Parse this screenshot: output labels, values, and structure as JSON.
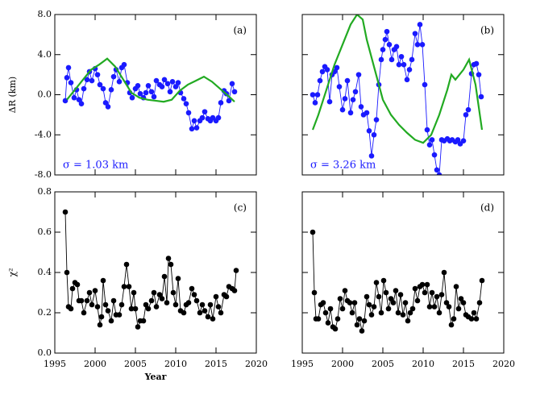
{
  "chart_data": [
    {
      "type": "line",
      "panel_label": "(a)",
      "note": "σ = 1.03 km",
      "ylabel": "ΔR (km)",
      "xlim": [
        1995,
        2020
      ],
      "xticks": [
        1995,
        2000,
        2005,
        2010,
        2015,
        2020
      ],
      "xtick_labels": false,
      "ytick_labels": true,
      "ylim": [
        -8,
        8
      ],
      "yticks": [
        {
          "value": -8,
          "label": "-8.0"
        },
        {
          "value": -4,
          "label": "-4.0"
        },
        {
          "value": 0,
          "label": "0.0"
        },
        {
          "value": 4,
          "label": "4.0"
        },
        {
          "value": 8,
          "label": "8.0"
        }
      ],
      "series": [
        {
          "color": "#1a1aff",
          "markers": true,
          "x": [
            1996.3,
            1996.5,
            1996.7,
            1997,
            1997.4,
            1997.7,
            1998,
            1998.3,
            1998.6,
            1999,
            1999.3,
            1999.6,
            2000,
            2000.3,
            2000.6,
            2001,
            2001.3,
            2001.6,
            2002,
            2002.3,
            2002.6,
            2003,
            2003.3,
            2003.6,
            2004,
            2004.3,
            2004.6,
            2005,
            2005.3,
            2005.6,
            2006,
            2006.3,
            2006.6,
            2007,
            2007.3,
            2007.6,
            2008,
            2008.3,
            2008.6,
            2009,
            2009.3,
            2009.6,
            2010,
            2010.3,
            2010.6,
            2011,
            2011.3,
            2011.6,
            2012,
            2012.3,
            2012.6,
            2013,
            2013.3,
            2013.6,
            2014,
            2014.3,
            2014.6,
            2015,
            2015.3,
            2015.6,
            2016,
            2016.3,
            2016.6,
            2017,
            2017.3
          ],
          "values": [
            -0.6,
            1.7,
            2.7,
            1.2,
            -0.3,
            0.5,
            -0.5,
            -0.9,
            0.6,
            1.5,
            2.3,
            1.4,
            2.6,
            2.0,
            1.0,
            0.6,
            -0.8,
            -1.2,
            0.5,
            1.8,
            2.5,
            1.3,
            2.7,
            3.0,
            1.2,
            0.2,
            -0.3,
            0.6,
            0.9,
            0.1,
            -0.3,
            0.2,
            0.9,
            0.3,
            -0.2,
            1.4,
            1.0,
            0.8,
            1.5,
            1.1,
            0.3,
            1.3,
            0.8,
            1.2,
            0.2,
            -0.4,
            -0.9,
            -1.8,
            -3.4,
            -2.6,
            -3.3,
            -2.6,
            -2.3,
            -1.7,
            -2.4,
            -2.6,
            -2.3,
            -2.6,
            -2.3,
            -0.8,
            0.4,
            0.1,
            -0.6,
            1.1,
            0.3
          ]
        },
        {
          "color": "#22aa22",
          "markers": false,
          "x": [
            1996.5,
            1997.5,
            1998.5,
            1999.5,
            2000.5,
            2001.5,
            2002.5,
            2003.5,
            2004.5,
            2005.5,
            2006.5,
            2007.5,
            2008.5,
            2009.5,
            2010.5,
            2011.5,
            2012.5,
            2013.5,
            2014.5,
            2015.5,
            2016.5,
            2017.3
          ],
          "values": [
            -0.5,
            0.5,
            1.5,
            2.5,
            3.0,
            3.6,
            2.8,
            1.5,
            0.2,
            -0.3,
            -0.5,
            -0.6,
            -0.7,
            -0.5,
            0.4,
            1.0,
            1.4,
            1.8,
            1.3,
            0.6,
            -0.1,
            -0.7
          ]
        }
      ]
    },
    {
      "type": "line",
      "panel_label": "(b)",
      "note": "σ = 3.26 km",
      "xlim": [
        1995,
        2020
      ],
      "xticks": [
        1995,
        2000,
        2005,
        2010,
        2015,
        2020
      ],
      "xtick_labels": false,
      "ytick_labels": false,
      "ylim": [
        -8,
        8
      ],
      "yticks": [
        -8,
        -4,
        0,
        4,
        8
      ],
      "series": [
        {
          "color": "#1a1aff",
          "markers": true,
          "x": [
            1996.3,
            1996.6,
            1996.9,
            1997.2,
            1997.5,
            1997.8,
            1998.1,
            1998.4,
            1998.7,
            1999,
            1999.3,
            1999.6,
            2000,
            2000.3,
            2000.6,
            2001,
            2001.3,
            2001.6,
            2002,
            2002.3,
            2002.6,
            2003,
            2003.3,
            2003.6,
            2003.9,
            2004.2,
            2004.5,
            2004.8,
            2005,
            2005.3,
            2005.5,
            2005.8,
            2006.1,
            2006.4,
            2006.7,
            2007,
            2007.3,
            2007.6,
            2008,
            2008.3,
            2008.6,
            2009,
            2009.3,
            2009.6,
            2009.9,
            2010.2,
            2010.5,
            2010.8,
            2011.1,
            2011.4,
            2011.7,
            2012,
            2012.3,
            2012.6,
            2013,
            2013.3,
            2013.6,
            2014,
            2014.3,
            2014.6,
            2015,
            2015.3,
            2015.6,
            2016,
            2016.3,
            2016.6,
            2016.9,
            2017.2
          ],
          "values": [
            0.0,
            -0.8,
            0.0,
            1.4,
            2.3,
            2.8,
            2.5,
            -0.7,
            2.0,
            2.3,
            2.7,
            0.8,
            -1.5,
            -0.4,
            1.4,
            -1.8,
            -0.5,
            0.3,
            2.0,
            -1.2,
            -2.0,
            -1.8,
            -3.6,
            -6.1,
            -4.0,
            -2.5,
            1.0,
            3.5,
            4.5,
            5.5,
            6.3,
            5.0,
            3.5,
            4.5,
            4.8,
            3.0,
            3.8,
            3.0,
            1.5,
            2.5,
            3.5,
            6.1,
            5.0,
            7.0,
            5.0,
            1.0,
            -3.5,
            -5.0,
            -4.5,
            -6.0,
            -7.5,
            -8.0,
            -4.5,
            -4.6,
            -4.4,
            -4.6,
            -4.5,
            -4.7,
            -4.5,
            -4.9,
            -4.6,
            -2.0,
            -1.5,
            2.1,
            3.0,
            3.1,
            2.0,
            -0.2
          ]
        },
        {
          "color": "#22aa22",
          "markers": false,
          "x": [
            1996.3,
            1997,
            1998,
            1999,
            2000,
            2001,
            2001.8,
            2002.5,
            2003,
            2004,
            2005,
            2006,
            2007,
            2008,
            2009,
            2010,
            2011,
            2012,
            2013,
            2013.5,
            2014,
            2015,
            2015.7,
            2016.5,
            2017.3
          ],
          "values": [
            -3.5,
            -2.0,
            0.5,
            3.0,
            5.0,
            7.0,
            8.0,
            7.5,
            5.5,
            2.5,
            -0.5,
            -2.0,
            -3.0,
            -3.8,
            -4.5,
            -4.8,
            -4.0,
            -2.0,
            0.5,
            2.0,
            1.5,
            2.5,
            3.5,
            1.0,
            -3.5
          ]
        }
      ]
    },
    {
      "type": "line",
      "panel_label": "(c)",
      "ylabel": "χ²",
      "xlabel": "Year",
      "xlim": [
        1995,
        2020
      ],
      "xticks": [
        1995,
        2000,
        2005,
        2010,
        2015,
        2020
      ],
      "xtick_labels": true,
      "ytick_labels": true,
      "ylim": [
        0,
        0.8
      ],
      "yticks": [
        {
          "value": 0,
          "label": "0.0"
        },
        {
          "value": 0.2,
          "label": "0.2"
        },
        {
          "value": 0.4,
          "label": "0.4"
        },
        {
          "value": 0.6,
          "label": "0.6"
        },
        {
          "value": 0.8,
          "label": "0.8"
        }
      ],
      "series": [
        {
          "color": "#000000",
          "markers": true,
          "x": [
            1996.3,
            1996.5,
            1996.7,
            1997,
            1997.2,
            1997.5,
            1997.8,
            1998,
            1998.3,
            1998.6,
            1999,
            1999.3,
            1999.6,
            2000,
            2000.3,
            2000.6,
            2000.8,
            2001,
            2001.3,
            2001.6,
            2002,
            2002.3,
            2002.6,
            2003,
            2003.3,
            2003.6,
            2003.9,
            2004.2,
            2004.5,
            2004.8,
            2005,
            2005.3,
            2005.6,
            2006,
            2006.3,
            2006.6,
            2007,
            2007.3,
            2007.6,
            2008,
            2008.3,
            2008.6,
            2008.9,
            2009.1,
            2009.4,
            2009.7,
            2010,
            2010.3,
            2010.6,
            2011,
            2011.3,
            2011.6,
            2012,
            2012.3,
            2012.6,
            2013,
            2013.3,
            2013.6,
            2014,
            2014.3,
            2014.6,
            2015,
            2015.3,
            2015.6,
            2016,
            2016.3,
            2016.6,
            2017,
            2017.3,
            2017.5
          ],
          "values": [
            0.7,
            0.4,
            0.23,
            0.22,
            0.32,
            0.35,
            0.34,
            0.26,
            0.26,
            0.2,
            0.26,
            0.3,
            0.24,
            0.31,
            0.23,
            0.14,
            0.18,
            0.36,
            0.24,
            0.21,
            0.16,
            0.26,
            0.19,
            0.19,
            0.24,
            0.33,
            0.44,
            0.33,
            0.22,
            0.3,
            0.22,
            0.13,
            0.16,
            0.16,
            0.24,
            0.22,
            0.26,
            0.3,
            0.23,
            0.29,
            0.27,
            0.38,
            0.25,
            0.47,
            0.44,
            0.3,
            0.24,
            0.37,
            0.21,
            0.2,
            0.24,
            0.25,
            0.32,
            0.29,
            0.26,
            0.2,
            0.24,
            0.21,
            0.18,
            0.24,
            0.17,
            0.28,
            0.23,
            0.2,
            0.29,
            0.28,
            0.33,
            0.32,
            0.31,
            0.41
          ]
        }
      ]
    },
    {
      "type": "line",
      "panel_label": "(d)",
      "xlim": [
        1995,
        2020
      ],
      "xticks": [
        1995,
        2000,
        2005,
        2010,
        2015,
        2020
      ],
      "xtick_labels": true,
      "ytick_labels": false,
      "ylim": [
        0,
        0.8
      ],
      "yticks": [
        0,
        0.2,
        0.4,
        0.6,
        0.8
      ],
      "series": [
        {
          "color": "#000000",
          "markers": true,
          "x": [
            1996.3,
            1996.5,
            1996.7,
            1997,
            1997.3,
            1997.6,
            1997.9,
            1998.2,
            1998.5,
            1998.8,
            1999.1,
            1999.4,
            1999.7,
            2000,
            2000.3,
            2000.6,
            2000.9,
            2001.2,
            2001.5,
            2001.8,
            2002.1,
            2002.4,
            2002.7,
            2003,
            2003.3,
            2003.6,
            2003.9,
            2004.2,
            2004.5,
            2004.8,
            2005.1,
            2005.4,
            2005.7,
            2006,
            2006.3,
            2006.6,
            2006.9,
            2007.2,
            2007.5,
            2007.8,
            2008.1,
            2008.4,
            2008.7,
            2009,
            2009.3,
            2009.6,
            2009.9,
            2010.2,
            2010.5,
            2010.8,
            2011.1,
            2011.4,
            2011.7,
            2012,
            2012.3,
            2012.6,
            2012.9,
            2013.2,
            2013.5,
            2013.8,
            2014.1,
            2014.4,
            2014.7,
            2015,
            2015.3,
            2015.6,
            2016,
            2016.3,
            2016.6,
            2017,
            2017.3
          ],
          "values": [
            0.6,
            0.3,
            0.17,
            0.17,
            0.24,
            0.25,
            0.2,
            0.15,
            0.22,
            0.13,
            0.12,
            0.17,
            0.27,
            0.22,
            0.31,
            0.26,
            0.25,
            0.2,
            0.25,
            0.14,
            0.17,
            0.11,
            0.16,
            0.28,
            0.24,
            0.19,
            0.23,
            0.35,
            0.28,
            0.2,
            0.36,
            0.3,
            0.22,
            0.27,
            0.25,
            0.31,
            0.2,
            0.29,
            0.19,
            0.25,
            0.16,
            0.2,
            0.22,
            0.32,
            0.26,
            0.33,
            0.34,
            0.3,
            0.34,
            0.23,
            0.3,
            0.23,
            0.28,
            0.2,
            0.29,
            0.4,
            0.25,
            0.23,
            0.14,
            0.17,
            0.33,
            0.22,
            0.27,
            0.25,
            0.19,
            0.18,
            0.17,
            0.2,
            0.17,
            0.25,
            0.36
          ]
        }
      ]
    }
  ]
}
